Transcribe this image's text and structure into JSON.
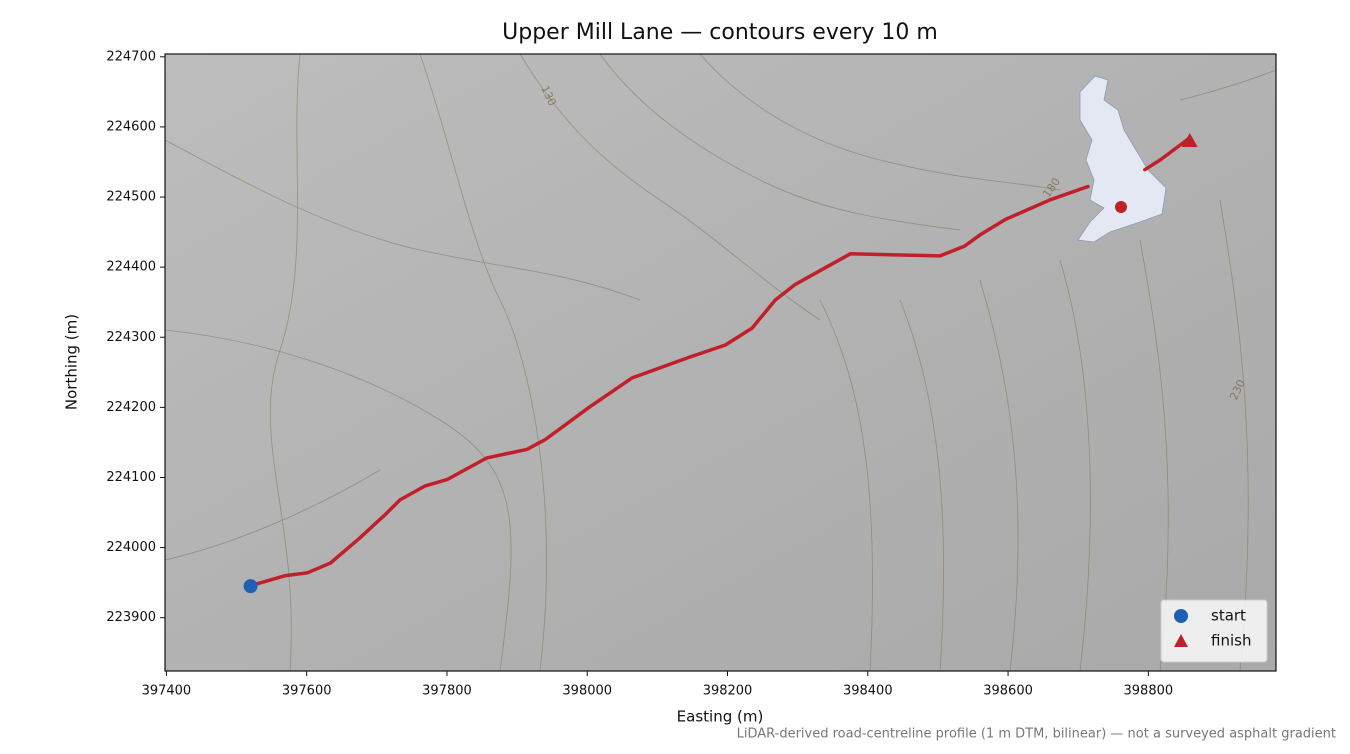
{
  "chart_data": {
    "type": "line",
    "title": "Upper Mill Lane — contours every 10 m",
    "xlabel": "Easting (m)",
    "ylabel": "Northing (m)",
    "footnote": "LiDAR-derived road-centreline profile (1 m DTM, bilinear) — not a surveyed asphalt gradient",
    "xlim": [
      397398,
      398982
    ],
    "ylim": [
      223824,
      224704
    ],
    "xticks": [
      397400,
      397600,
      397800,
      398000,
      398200,
      398400,
      398600,
      398800
    ],
    "yticks": [
      223900,
      224000,
      224100,
      224200,
      224300,
      224400,
      224500,
      224600,
      224700
    ],
    "contour_labels": [
      "130",
      "180",
      "230"
    ],
    "route": {
      "color": "#c0202a",
      "x": [
        397521,
        397570,
        397601,
        397634,
        397676,
        397712,
        397733,
        397769,
        397800,
        397857,
        397914,
        397940,
        398004,
        398064,
        398147,
        398197,
        398235,
        398268,
        398296,
        398375,
        398503,
        398538,
        398560,
        398596,
        398660,
        398714,
        null,
        398795,
        398817,
        398856
      ],
      "y": [
        223946,
        223960,
        223964,
        223978,
        224014,
        224047,
        224068,
        224088,
        224097,
        224128,
        224140,
        224154,
        224201,
        224242,
        224272,
        224289,
        224313,
        224353,
        224375,
        224419,
        224416,
        224430,
        224446,
        224468,
        224496,
        224515,
        null,
        224539,
        224553,
        224582
      ]
    },
    "markers": [
      {
        "name": "start",
        "color": "#1f5fb4",
        "marker": "circle",
        "x": 397520,
        "y": 223945
      },
      {
        "name": "finish",
        "color": "#c0202a",
        "marker": "triangle",
        "x": 398859,
        "y": 224580
      }
    ],
    "legend": "lower right"
  }
}
